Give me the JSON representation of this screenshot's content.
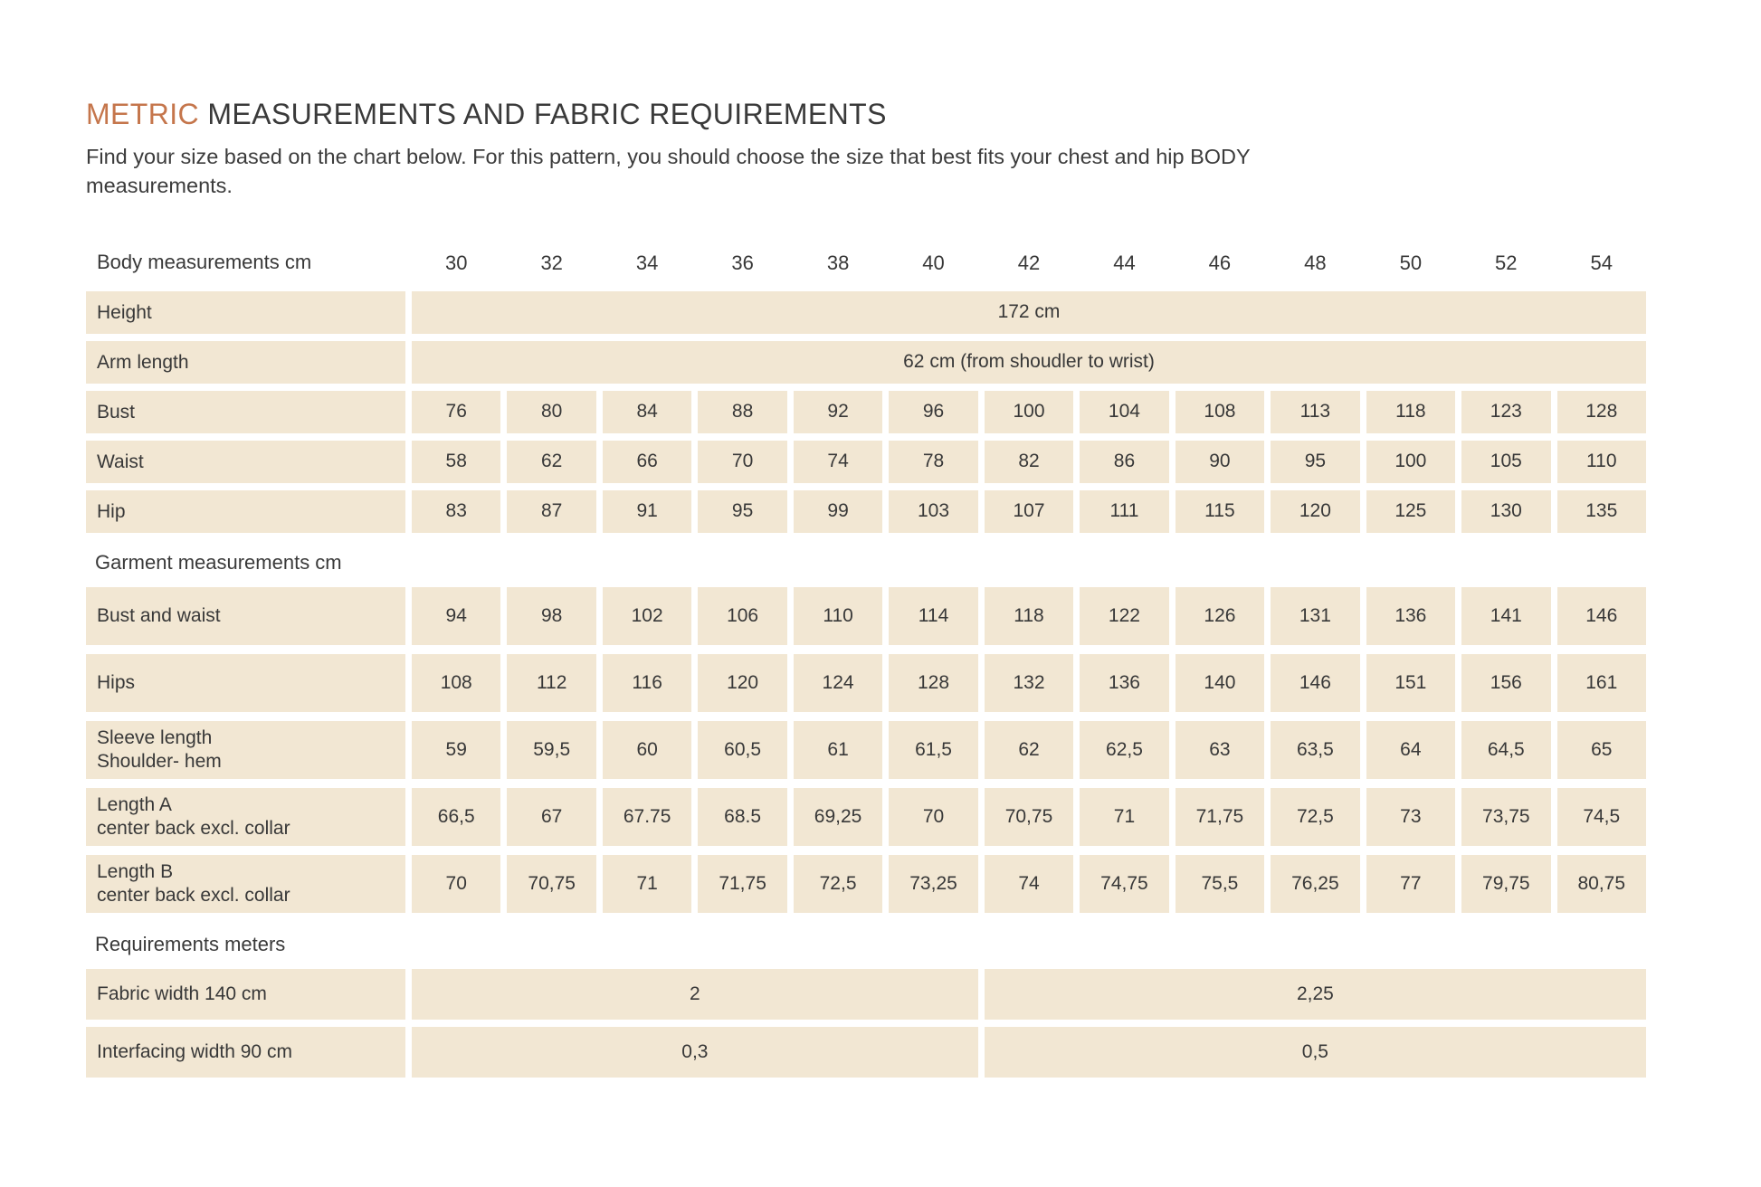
{
  "header": {
    "title_highlight": "METRIC",
    "title_rest": " MEASUREMENTS AND FABRIC REQUIREMENTS",
    "subtitle": "Find your size based on the chart below. For this pattern, you should choose the size that best fits your chest and hip BODY measurements."
  },
  "colors": {
    "accent": "#c5764c",
    "cell_background": "#f2e7d3",
    "text": "#3a3a3a"
  },
  "table": {
    "header_label": "Body measurements cm",
    "sizes": [
      "30",
      "32",
      "34",
      "36",
      "38",
      "40",
      "42",
      "44",
      "46",
      "48",
      "50",
      "52",
      "54"
    ],
    "body_rows": [
      {
        "label_lines": [
          "Height"
        ],
        "span_value": "172 cm"
      },
      {
        "label_lines": [
          "Arm length"
        ],
        "span_value": "62 cm (from shoudler to wrist)"
      },
      {
        "label_lines": [
          "Bust"
        ],
        "values": [
          "76",
          "80",
          "84",
          "88",
          "92",
          "96",
          "100",
          "104",
          "108",
          "113",
          "118",
          "123",
          "128"
        ]
      },
      {
        "label_lines": [
          "Waist"
        ],
        "values": [
          "58",
          "62",
          "66",
          "70",
          "74",
          "78",
          "82",
          "86",
          "90",
          "95",
          "100",
          "105",
          "110"
        ]
      },
      {
        "label_lines": [
          "Hip"
        ],
        "values": [
          "83",
          "87",
          "91",
          "95",
          "99",
          "103",
          "107",
          "111",
          "115",
          "120",
          "125",
          "130",
          "135"
        ]
      }
    ],
    "garment_section_label": "Garment measurements cm",
    "garment_rows": [
      {
        "label_lines": [
          "Bust and waist"
        ],
        "values": [
          "94",
          "98",
          "102",
          "106",
          "110",
          "114",
          "118",
          "122",
          "126",
          "131",
          "136",
          "141",
          "146"
        ]
      },
      {
        "label_lines": [
          "Hips"
        ],
        "values": [
          "108",
          "112",
          "116",
          "120",
          "124",
          "128",
          "132",
          "136",
          "140",
          "146",
          "151",
          "156",
          "161"
        ]
      },
      {
        "label_lines": [
          "Sleeve length",
          "Shoulder- hem"
        ],
        "values": [
          "59",
          "59,5",
          "60",
          "60,5",
          "61",
          "61,5",
          "62",
          "62,5",
          "63",
          "63,5",
          "64",
          "64,5",
          "65"
        ]
      },
      {
        "label_lines": [
          "Length A",
          "center back excl. collar"
        ],
        "values": [
          "66,5",
          "67",
          "67.75",
          "68.5",
          "69,25",
          "70",
          "70,75",
          "71",
          "71,75",
          "72,5",
          "73",
          "73,75",
          "74,5"
        ]
      },
      {
        "label_lines": [
          "Length B",
          "center back excl. collar"
        ],
        "values": [
          "70",
          "70,75",
          "71",
          "71,75",
          "72,5",
          "73,25",
          "74",
          "74,75",
          "75,5",
          "76,25",
          "77",
          "79,75",
          "80,75"
        ]
      }
    ],
    "requirements_section_label": "Requirements meters",
    "requirement_rows": [
      {
        "label_lines": [
          "Fabric width 140 cm"
        ],
        "span_left": "2",
        "span_right": "2,25"
      },
      {
        "label_lines": [
          "Interfacing width 90 cm"
        ],
        "span_left": "0,3",
        "span_right": "0,5"
      }
    ]
  }
}
